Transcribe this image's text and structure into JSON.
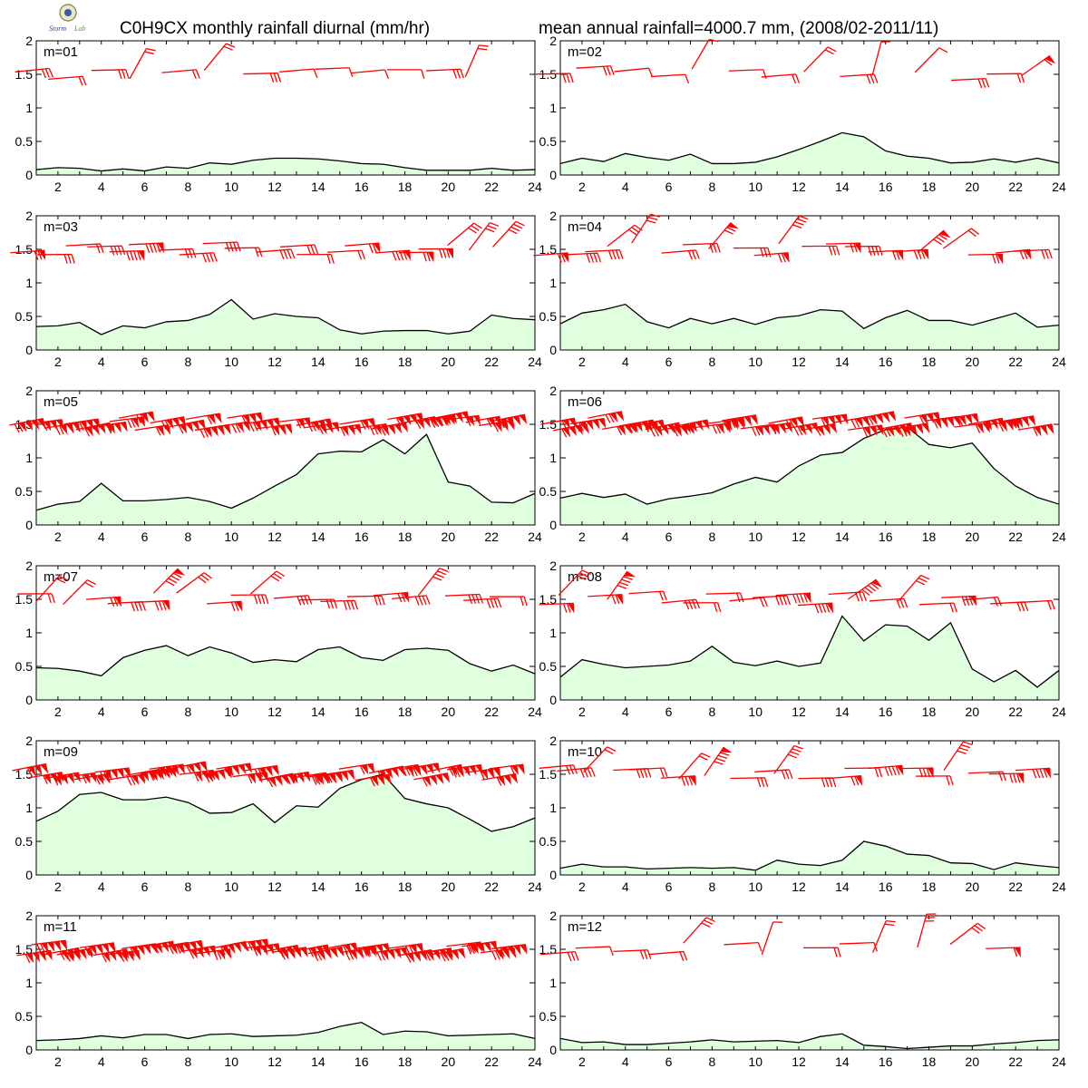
{
  "header": {
    "title_left": "C0H9CX monthly rainfall diurnal (mm/hr)",
    "title_right": "mean annual rainfall=4000.7 mm, (2008/02-2011/11)"
  },
  "logo": {
    "icon": "lab-logo-icon",
    "text": "Storm Lab"
  },
  "colors": {
    "area_fill": "#dfffdf",
    "line": "#000000",
    "barb": "#ff0000"
  },
  "chart_data": [
    {
      "type": "area",
      "label": "m=01",
      "xlim": [
        1,
        24
      ],
      "ylim": [
        0,
        2
      ],
      "x": [
        1,
        2,
        3,
        4,
        5,
        6,
        7,
        8,
        9,
        10,
        11,
        12,
        13,
        14,
        15,
        16,
        17,
        18,
        19,
        20,
        21,
        22,
        23,
        24
      ],
      "yticks": [
        "0",
        "0.5",
        "1",
        "1.5",
        "2"
      ],
      "xticks": [
        "2",
        "4",
        "6",
        "8",
        "10",
        "12",
        "14",
        "16",
        "18",
        "20",
        "22",
        "24"
      ],
      "values": [
        0.08,
        0.11,
        0.1,
        0.06,
        0.09,
        0.06,
        0.12,
        0.1,
        0.18,
        0.16,
        0.22,
        0.25,
        0.25,
        0.24,
        0.21,
        0.17,
        0.16,
        0.11,
        0.07,
        0.07,
        0.07,
        0.1,
        0.07,
        0.08
      ],
      "barbs": "sparse"
    },
    {
      "type": "area",
      "label": "m=02",
      "xlim": [
        1,
        24
      ],
      "ylim": [
        0,
        2
      ],
      "x": [
        1,
        2,
        3,
        4,
        5,
        6,
        7,
        8,
        9,
        10,
        11,
        12,
        13,
        14,
        15,
        16,
        17,
        18,
        19,
        20,
        21,
        22,
        23,
        24
      ],
      "yticks": [
        "0",
        "0.5",
        "1",
        "1.5",
        "2"
      ],
      "xticks": [
        "2",
        "4",
        "6",
        "8",
        "10",
        "12",
        "14",
        "16",
        "18",
        "20",
        "22",
        "24"
      ],
      "values": [
        0.17,
        0.25,
        0.2,
        0.32,
        0.26,
        0.22,
        0.31,
        0.17,
        0.17,
        0.19,
        0.27,
        0.38,
        0.5,
        0.63,
        0.57,
        0.36,
        0.28,
        0.25,
        0.18,
        0.19,
        0.24,
        0.19,
        0.25,
        0.18
      ],
      "barbs": "sparse"
    },
    {
      "type": "area",
      "label": "m=03",
      "xlim": [
        1,
        24
      ],
      "ylim": [
        0,
        2
      ],
      "x": [
        1,
        2,
        3,
        4,
        5,
        6,
        7,
        8,
        9,
        10,
        11,
        12,
        13,
        14,
        15,
        16,
        17,
        18,
        19,
        20,
        21,
        22,
        23,
        24
      ],
      "yticks": [
        "0",
        "0.5",
        "1",
        "1.5",
        "2"
      ],
      "xticks": [
        "2",
        "4",
        "6",
        "8",
        "10",
        "12",
        "14",
        "16",
        "18",
        "20",
        "22",
        "24"
      ],
      "values": [
        0.35,
        0.36,
        0.41,
        0.23,
        0.36,
        0.33,
        0.42,
        0.44,
        0.53,
        0.75,
        0.46,
        0.54,
        0.5,
        0.48,
        0.3,
        0.24,
        0.28,
        0.29,
        0.29,
        0.24,
        0.28,
        0.52,
        0.47,
        0.45
      ],
      "barbs": "medium"
    },
    {
      "type": "area",
      "label": "m=04",
      "xlim": [
        1,
        24
      ],
      "ylim": [
        0,
        2
      ],
      "x": [
        1,
        2,
        3,
        4,
        5,
        6,
        7,
        8,
        9,
        10,
        11,
        12,
        13,
        14,
        15,
        16,
        17,
        18,
        19,
        20,
        21,
        22,
        23,
        24
      ],
      "yticks": [
        "0",
        "0.5",
        "1",
        "1.5",
        "2"
      ],
      "xticks": [
        "2",
        "4",
        "6",
        "8",
        "10",
        "12",
        "14",
        "16",
        "18",
        "20",
        "22",
        "24"
      ],
      "values": [
        0.39,
        0.55,
        0.6,
        0.68,
        0.42,
        0.33,
        0.47,
        0.39,
        0.47,
        0.38,
        0.48,
        0.51,
        0.6,
        0.58,
        0.32,
        0.48,
        0.59,
        0.44,
        0.44,
        0.37,
        0.46,
        0.55,
        0.34,
        0.37
      ],
      "barbs": "medium"
    },
    {
      "type": "area",
      "label": "m=05",
      "xlim": [
        1,
        24
      ],
      "ylim": [
        0,
        2
      ],
      "x": [
        1,
        2,
        3,
        4,
        5,
        6,
        7,
        8,
        9,
        10,
        11,
        12,
        13,
        14,
        15,
        16,
        17,
        18,
        19,
        20,
        21,
        22,
        23,
        24
      ],
      "yticks": [
        "0",
        "0.5",
        "1",
        "1.5",
        "2"
      ],
      "xticks": [
        "2",
        "4",
        "6",
        "8",
        "10",
        "12",
        "14",
        "16",
        "18",
        "20",
        "22",
        "24"
      ],
      "values": [
        0.22,
        0.31,
        0.35,
        0.62,
        0.36,
        0.36,
        0.38,
        0.41,
        0.35,
        0.25,
        0.4,
        0.58,
        0.75,
        1.06,
        1.1,
        1.09,
        1.27,
        1.06,
        1.35,
        0.64,
        0.58,
        0.34,
        0.33,
        0.47
      ],
      "barbs": "dense"
    },
    {
      "type": "area",
      "label": "m=06",
      "xlim": [
        1,
        24
      ],
      "ylim": [
        0,
        2
      ],
      "x": [
        1,
        2,
        3,
        4,
        5,
        6,
        7,
        8,
        9,
        10,
        11,
        12,
        13,
        14,
        15,
        16,
        17,
        18,
        19,
        20,
        21,
        22,
        23,
        24
      ],
      "yticks": [
        "0",
        "0.5",
        "1",
        "1.5",
        "2"
      ],
      "xticks": [
        "2",
        "4",
        "6",
        "8",
        "10",
        "12",
        "14",
        "16",
        "18",
        "20",
        "22",
        "24"
      ],
      "values": [
        0.4,
        0.47,
        0.41,
        0.46,
        0.31,
        0.39,
        0.43,
        0.48,
        0.61,
        0.71,
        0.64,
        0.88,
        1.04,
        1.08,
        1.29,
        1.42,
        1.46,
        1.2,
        1.15,
        1.22,
        0.84,
        0.58,
        0.41,
        0.31
      ],
      "barbs": "dense"
    },
    {
      "type": "area",
      "label": "m=07",
      "xlim": [
        1,
        24
      ],
      "ylim": [
        0,
        2
      ],
      "x": [
        1,
        2,
        3,
        4,
        5,
        6,
        7,
        8,
        9,
        10,
        11,
        12,
        13,
        14,
        15,
        16,
        17,
        18,
        19,
        20,
        21,
        22,
        23,
        24
      ],
      "yticks": [
        "0",
        "0.5",
        "1",
        "1.5",
        "2"
      ],
      "xticks": [
        "2",
        "4",
        "6",
        "8",
        "10",
        "12",
        "14",
        "16",
        "18",
        "20",
        "22",
        "24"
      ],
      "values": [
        0.48,
        0.47,
        0.43,
        0.36,
        0.63,
        0.74,
        0.81,
        0.66,
        0.79,
        0.7,
        0.56,
        0.6,
        0.57,
        0.75,
        0.79,
        0.63,
        0.59,
        0.75,
        0.77,
        0.74,
        0.54,
        0.43,
        0.52,
        0.39
      ],
      "barbs": "medium"
    },
    {
      "type": "area",
      "label": "m=08",
      "xlim": [
        1,
        24
      ],
      "ylim": [
        0,
        2
      ],
      "x": [
        1,
        2,
        3,
        4,
        5,
        6,
        7,
        8,
        9,
        10,
        11,
        12,
        13,
        14,
        15,
        16,
        17,
        18,
        19,
        20,
        21,
        22,
        23,
        24
      ],
      "yticks": [
        "0",
        "0.5",
        "1",
        "1.5",
        "2"
      ],
      "xticks": [
        "2",
        "4",
        "6",
        "8",
        "10",
        "12",
        "14",
        "16",
        "18",
        "20",
        "22",
        "24"
      ],
      "values": [
        0.34,
        0.6,
        0.53,
        0.48,
        0.5,
        0.52,
        0.58,
        0.8,
        0.56,
        0.51,
        0.58,
        0.5,
        0.55,
        1.25,
        0.88,
        1.12,
        1.1,
        0.89,
        1.15,
        0.46,
        0.27,
        0.44,
        0.19,
        0.44
      ],
      "barbs": "medium"
    },
    {
      "type": "area",
      "label": "m=09",
      "xlim": [
        1,
        24
      ],
      "ylim": [
        0,
        2
      ],
      "x": [
        1,
        2,
        3,
        4,
        5,
        6,
        7,
        8,
        9,
        10,
        11,
        12,
        13,
        14,
        15,
        16,
        17,
        18,
        19,
        20,
        21,
        22,
        23,
        24
      ],
      "yticks": [
        "0",
        "0.5",
        "1",
        "1.5",
        "2"
      ],
      "xticks": [
        "2",
        "4",
        "6",
        "8",
        "10",
        "12",
        "14",
        "16",
        "18",
        "20",
        "22",
        "24"
      ],
      "values": [
        0.8,
        0.95,
        1.2,
        1.23,
        1.12,
        1.12,
        1.16,
        1.08,
        0.92,
        0.93,
        1.06,
        0.78,
        1.03,
        1.01,
        1.29,
        1.42,
        1.5,
        1.14,
        1.06,
        1.0,
        0.83,
        0.65,
        0.72,
        0.85
      ],
      "barbs": "dense"
    },
    {
      "type": "area",
      "label": "m=10",
      "xlim": [
        1,
        24
      ],
      "ylim": [
        0,
        2
      ],
      "x": [
        1,
        2,
        3,
        4,
        5,
        6,
        7,
        8,
        9,
        10,
        11,
        12,
        13,
        14,
        15,
        16,
        17,
        18,
        19,
        20,
        21,
        22,
        23,
        24
      ],
      "yticks": [
        "0",
        "0.5",
        "1",
        "1.5",
        "2"
      ],
      "xticks": [
        "2",
        "4",
        "6",
        "8",
        "10",
        "12",
        "14",
        "16",
        "18",
        "20",
        "22",
        "24"
      ],
      "values": [
        0.1,
        0.16,
        0.12,
        0.12,
        0.09,
        0.1,
        0.11,
        0.1,
        0.11,
        0.07,
        0.22,
        0.16,
        0.14,
        0.22,
        0.5,
        0.43,
        0.31,
        0.29,
        0.18,
        0.17,
        0.08,
        0.18,
        0.14,
        0.11
      ],
      "barbs": "medium"
    },
    {
      "type": "area",
      "label": "m=11",
      "xlim": [
        1,
        24
      ],
      "ylim": [
        0,
        2
      ],
      "x": [
        1,
        2,
        3,
        4,
        5,
        6,
        7,
        8,
        9,
        10,
        11,
        12,
        13,
        14,
        15,
        16,
        17,
        18,
        19,
        20,
        21,
        22,
        23,
        24
      ],
      "yticks": [
        "0",
        "0.5",
        "1",
        "1.5",
        "2"
      ],
      "xticks": [
        "2",
        "4",
        "6",
        "8",
        "10",
        "12",
        "14",
        "16",
        "18",
        "20",
        "22",
        "24"
      ],
      "values": [
        0.14,
        0.15,
        0.17,
        0.21,
        0.18,
        0.23,
        0.23,
        0.17,
        0.23,
        0.24,
        0.2,
        0.21,
        0.22,
        0.26,
        0.35,
        0.41,
        0.23,
        0.28,
        0.27,
        0.21,
        0.22,
        0.23,
        0.24,
        0.17
      ],
      "barbs": "dense"
    },
    {
      "type": "area",
      "label": "m=12",
      "xlim": [
        1,
        24
      ],
      "ylim": [
        0,
        2
      ],
      "x": [
        1,
        2,
        3,
        4,
        5,
        6,
        7,
        8,
        9,
        10,
        11,
        12,
        13,
        14,
        15,
        16,
        17,
        18,
        19,
        20,
        21,
        22,
        23,
        24
      ],
      "yticks": [
        "0",
        "0.5",
        "1",
        "1.5",
        "2"
      ],
      "xticks": [
        "2",
        "4",
        "6",
        "8",
        "10",
        "12",
        "14",
        "16",
        "18",
        "20",
        "22",
        "24"
      ],
      "values": [
        0.17,
        0.11,
        0.12,
        0.08,
        0.08,
        0.1,
        0.12,
        0.15,
        0.12,
        0.13,
        0.14,
        0.11,
        0.2,
        0.24,
        0.07,
        0.05,
        0.02,
        0.04,
        0.06,
        0.06,
        0.09,
        0.11,
        0.14,
        0.15
      ],
      "barbs": "sparse"
    }
  ]
}
